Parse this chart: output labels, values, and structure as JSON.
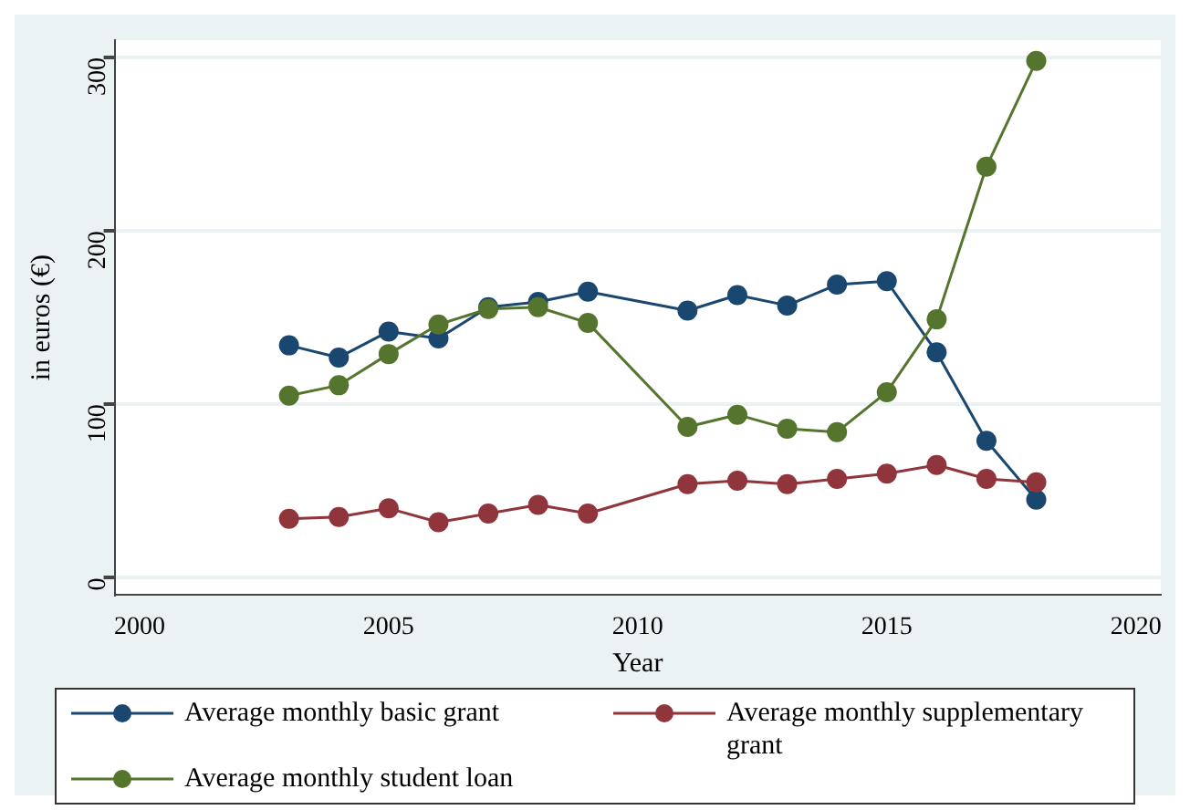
{
  "chart_data": {
    "type": "line",
    "xlabel": "Year",
    "ylabel": "in euros (€)",
    "x": [
      2003,
      2004,
      2005,
      2006,
      2007,
      2008,
      2009,
      2011,
      2012,
      2013,
      2014,
      2015,
      2016,
      2017,
      2018
    ],
    "series": [
      {
        "name": "Average monthly basic grant",
        "color": "#1a476f",
        "values": [
          134,
          127,
          142,
          138,
          156,
          159,
          165,
          154,
          163,
          157,
          169,
          171,
          130,
          79,
          45
        ]
      },
      {
        "name": "Average monthly supplementary grant",
        "color": "#90353b",
        "values": [
          34,
          35,
          40,
          32,
          37,
          42,
          37,
          54,
          56,
          54,
          57,
          60,
          65,
          57,
          55
        ]
      },
      {
        "name": "Average monthly student loan",
        "color": "#55752f",
        "values": [
          105,
          111,
          129,
          146,
          155,
          156,
          147,
          87,
          94,
          86,
          84,
          107,
          149,
          237,
          298
        ]
      }
    ],
    "xlim": [
      1999.5,
      2020.5
    ],
    "xticks": [
      2000,
      2005,
      2010,
      2015,
      2020
    ],
    "ylim": [
      -10,
      310
    ],
    "yticks": [
      0,
      100,
      200,
      300
    ],
    "grid": "y",
    "legend": "bottom",
    "marker": "circle",
    "line_style": "solid"
  }
}
